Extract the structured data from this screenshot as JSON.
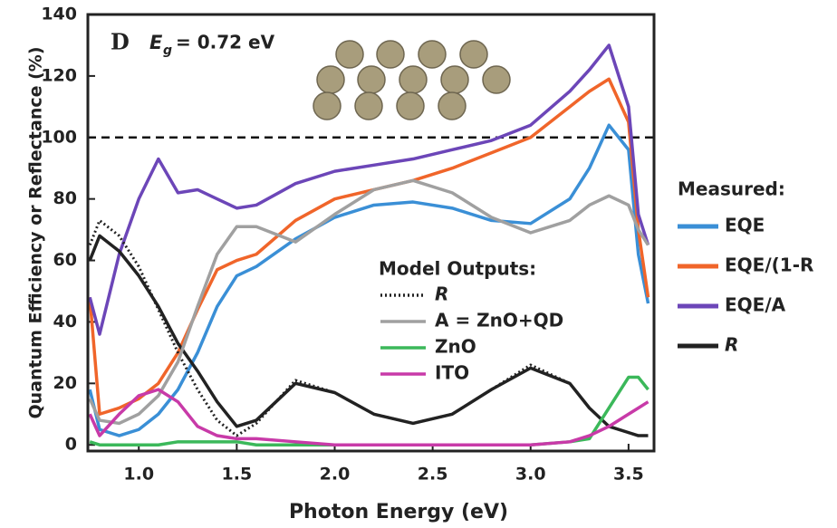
{
  "chart_data": {
    "type": "line",
    "panel_label": "D",
    "annotation": {
      "symbol": "E",
      "subscript": "g",
      "text": "= 0.72 eV"
    },
    "xlabel": "Photon Energy (eV)",
    "ylabel": "Quantum Efficiency or Reflectance (%)",
    "xlim": [
      0.74,
      3.63
    ],
    "ylim": [
      -2,
      140
    ],
    "xticks": [
      {
        "value": 1,
        "label": "1.0"
      },
      1.5,
      {
        "value": 2,
        "label": "2.0"
      },
      2.5,
      {
        "value": 3,
        "label": "3.0"
      },
      3.5
    ],
    "yticks": [
      0,
      20,
      40,
      60,
      80,
      100,
      120,
      140
    ],
    "reference_line": 100,
    "legend_titles": [
      "Measured:",
      "Model Outputs:"
    ],
    "x": [
      0.75,
      0.8,
      0.9,
      1.0,
      1.1,
      1.2,
      1.3,
      1.4,
      1.5,
      1.6,
      1.8,
      2.0,
      2.2,
      2.4,
      2.6,
      2.8,
      3.0,
      3.2,
      3.3,
      3.4,
      3.5,
      3.55,
      3.6
    ],
    "series": [
      {
        "name": "EQE",
        "group": 0,
        "color": "#3a8fd6",
        "style": "solid",
        "values": [
          18,
          5,
          3,
          5,
          10,
          18,
          30,
          45,
          55,
          58,
          67,
          74,
          78,
          79,
          77,
          73,
          72,
          80,
          90,
          104,
          96,
          62,
          46
        ]
      },
      {
        "name": "EQE/(1-R",
        "group": 0,
        "color": "#f0652a",
        "style": "solid",
        "values": [
          48,
          10,
          12,
          15,
          20,
          30,
          44,
          57,
          60,
          62,
          73,
          80,
          83,
          86,
          90,
          95,
          100,
          110,
          115,
          119,
          105,
          70,
          48
        ]
      },
      {
        "name": "EQE/A",
        "group": 0,
        "color": "#6c46b8",
        "style": "solid",
        "values": [
          48,
          36,
          62,
          80,
          93,
          82,
          83,
          80,
          77,
          78,
          85,
          89,
          91,
          93,
          96,
          99,
          104,
          115,
          122,
          130,
          110,
          75,
          65
        ]
      },
      {
        "name": "R",
        "group": 0,
        "color": "#222222",
        "style": "solid",
        "values": [
          60,
          68,
          63,
          55,
          45,
          33,
          24,
          14,
          6,
          8,
          20,
          17,
          10,
          7,
          10,
          18,
          25,
          20,
          12,
          6,
          4,
          3,
          3
        ]
      },
      {
        "name": "R",
        "group": 1,
        "color": "#222222",
        "style": "dotted",
        "values": [
          65,
          73,
          68,
          58,
          44,
          30,
          18,
          8,
          3,
          7,
          21,
          17,
          10,
          7,
          10,
          18,
          26,
          20,
          12,
          6,
          4,
          3,
          3
        ]
      },
      {
        "name": "A = ZnO+QD",
        "group": 1,
        "color": "#a0a0a0",
        "style": "solid",
        "values": [
          15,
          8,
          7,
          10,
          16,
          27,
          45,
          62,
          71,
          71,
          66,
          75,
          83,
          86,
          82,
          74,
          69,
          73,
          78,
          81,
          78,
          70,
          65
        ]
      },
      {
        "name": "ZnO",
        "group": 1,
        "color": "#3bb85a",
        "style": "solid",
        "values": [
          1,
          0,
          0,
          0,
          0,
          1,
          1,
          1,
          1,
          0,
          0,
          0,
          0,
          0,
          0,
          0,
          0,
          1,
          2,
          12,
          22,
          22,
          18
        ]
      },
      {
        "name": "ITO",
        "group": 1,
        "color": "#c83aa8",
        "style": "solid",
        "values": [
          10,
          3,
          10,
          16,
          18,
          14,
          6,
          3,
          2,
          2,
          1,
          0,
          0,
          0,
          0,
          0,
          0,
          1,
          3,
          6,
          10,
          12,
          14
        ]
      }
    ]
  }
}
